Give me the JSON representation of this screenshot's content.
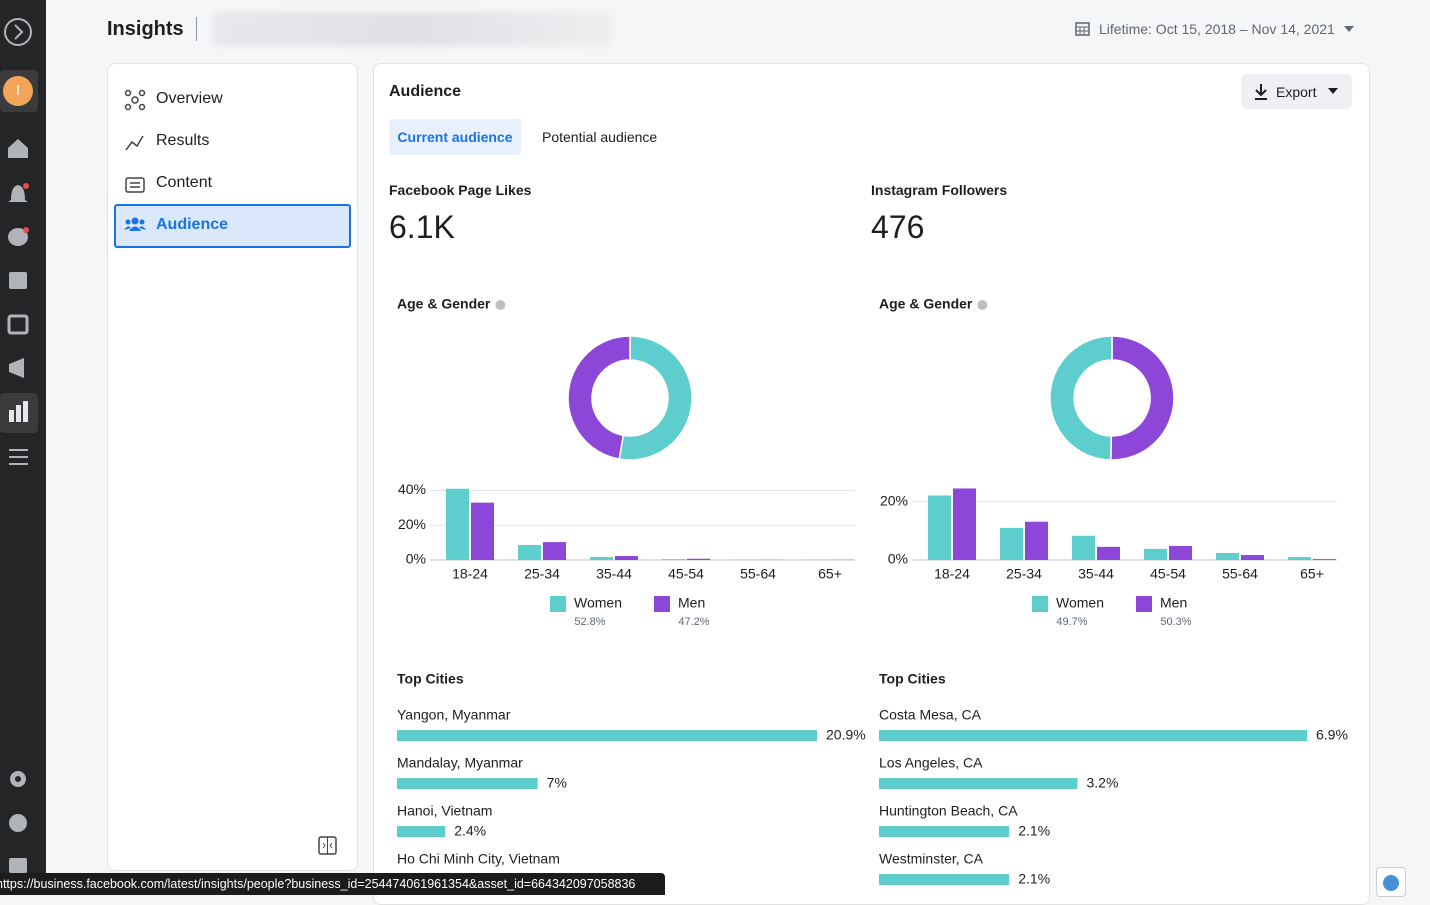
{
  "sidebar": {
    "avatar": "I"
  },
  "header": {
    "title": "Insights",
    "date_range": "Lifetime: Oct 15, 2018 – Nov 14, 2021"
  },
  "nav": {
    "items": [
      "Overview",
      "Results",
      "Content",
      "Audience"
    ]
  },
  "panel": {
    "title": "Audience",
    "export": "Export",
    "tabs": [
      "Current audience",
      "Potential audience"
    ]
  },
  "metrics": [
    {
      "label": "Facebook Page Likes",
      "value": "6.1K"
    },
    {
      "label": "Instagram Followers",
      "value": "476"
    }
  ],
  "status_bar": "https://business.facebook.com/latest/insights/people?business_id=254474061961354&asset_id=664342097058836",
  "chart_data": [
    {
      "type": "pie",
      "title": "Age & Gender",
      "values": [
        52.8,
        47.2
      ],
      "value_labels": [
        "52.8%",
        "47.2%"
      ],
      "colors": [
        "#5ecdcd",
        "#8c46d8"
      ]
    },
    {
      "type": "bar",
      "categories": [
        "18-24",
        "25-34",
        "35-44",
        "45-54",
        "55-64",
        "65+"
      ],
      "series": [
        {
          "name": "Women",
          "color": "#5ecdcd",
          "values": [
            41,
            8.6,
            1.7,
            0.5,
            0.1,
            0.1
          ]
        },
        {
          "name": "Men",
          "color": "#8c46d8",
          "values": [
            33,
            10.3,
            2.3,
            0.7,
            0.1,
            0.1
          ]
        }
      ],
      "ylim": [
        0,
        42
      ],
      "yticks": [
        {
          "value": 0,
          "label": "0%"
        },
        {
          "value": 20,
          "label": "20%"
        },
        {
          "value": 40,
          "label": "40%"
        }
      ],
      "grid": true
    },
    {
      "type": "bar",
      "orientation": "horizontal",
      "title": "Top Cities",
      "categories": [
        "Yangon, Myanmar",
        "Mandalay, Myanmar",
        "Hanoi, Vietnam",
        "Ho Chi Minh City, Vietnam"
      ],
      "values": [
        20.9,
        7,
        2.4,
        null
      ],
      "value_labels": [
        "20.9%",
        "7%",
        "2.4%",
        null
      ],
      "color": "#5ecdcd",
      "xlim": [
        0,
        20.9
      ]
    },
    {
      "type": "pie",
      "title": "Age & Gender",
      "values": [
        49.7,
        50.3
      ],
      "value_labels": [
        "49.7%",
        "50.3%"
      ],
      "colors": [
        "#5ecdcd",
        "#8c46d8"
      ]
    },
    {
      "type": "bar",
      "categories": [
        "18-24",
        "25-34",
        "35-44",
        "45-54",
        "55-64",
        "65+"
      ],
      "series": [
        {
          "name": "Women",
          "color": "#5ecdcd",
          "values": [
            22.1,
            11,
            8.3,
            3.8,
            2.4,
            1
          ]
        },
        {
          "name": "Men",
          "color": "#8c46d8",
          "values": [
            24.5,
            13.1,
            4.5,
            4.8,
            1.7,
            0.3
          ]
        }
      ],
      "ylim": [
        0,
        25
      ],
      "yticks": [
        {
          "value": 0,
          "label": "0%"
        },
        {
          "value": 20,
          "label": "20%"
        }
      ],
      "grid": true
    },
    {
      "type": "bar",
      "orientation": "horizontal",
      "title": "Top Cities",
      "categories": [
        "Costa Mesa, CA",
        "Los Angeles, CA",
        "Huntington Beach, CA",
        "Westminster, CA"
      ],
      "values": [
        6.9,
        3.2,
        2.1,
        2.1
      ],
      "value_labels": [
        "6.9%",
        "3.2%",
        "2.1%",
        "2.1%"
      ],
      "color": "#5ecdcd",
      "xlim": [
        0,
        6.9
      ]
    }
  ]
}
